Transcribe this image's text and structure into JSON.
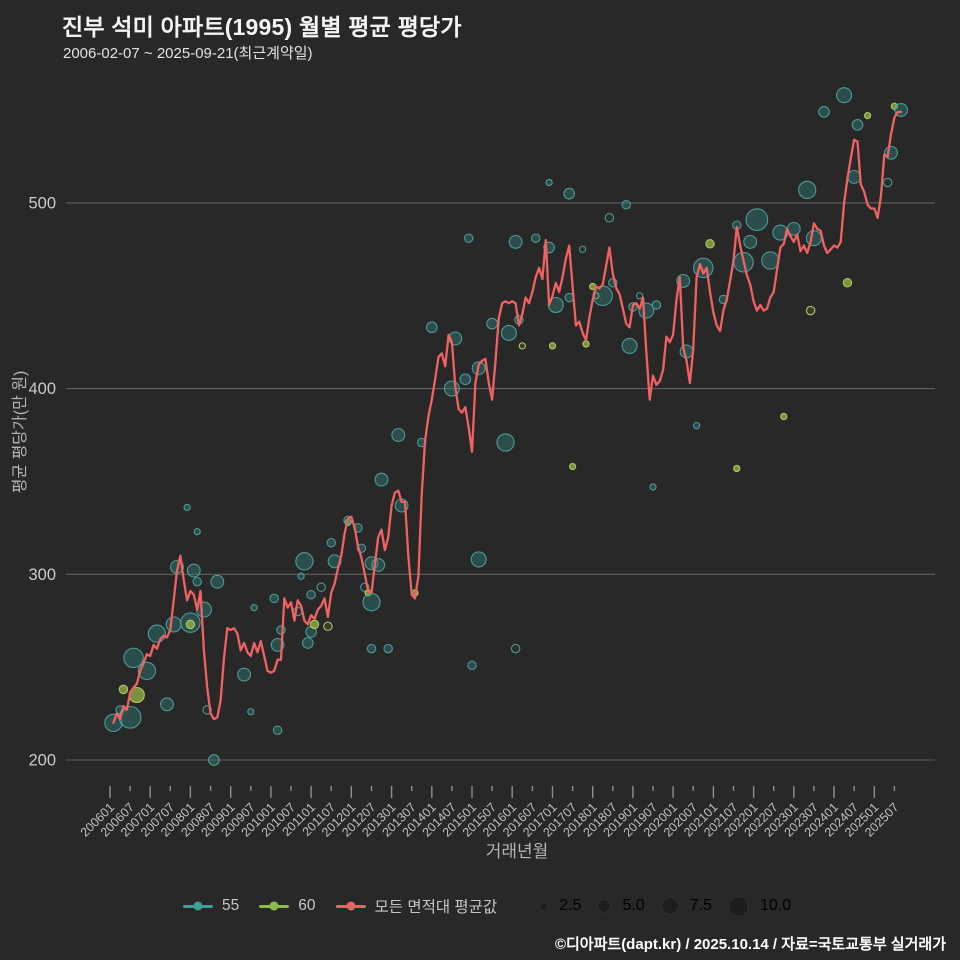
{
  "header": {
    "title": "진부 석미 아파트(1995) 월별 평균 평당가",
    "subtitle": "2006-02-07 ~ 2025-09-21(최근계약일)"
  },
  "footer": {
    "credit": "©디아파트(dapt.kr) / 2025.10.14 / 자료=국토교통부 실거래가"
  },
  "legend": {
    "series": [
      {
        "label": "55",
        "color": "#3f9e97"
      },
      {
        "label": "60",
        "color": "#8fbb4d"
      },
      {
        "label": "모든 면적대 평균값",
        "color": "#f06262"
      }
    ],
    "sizes": [
      {
        "label": "2.5"
      },
      {
        "label": "5.0"
      },
      {
        "label": "7.5"
      },
      {
        "label": "10.0"
      }
    ]
  },
  "chart_data": {
    "type": "line+scatter",
    "xlabel": "거래년월",
    "ylabel": "평균 평당가(만 원)",
    "y_ticks": [
      200,
      300,
      400,
      500
    ],
    "ylim": [
      190,
      565
    ],
    "grid": "horizontal-only",
    "x_tick_labels": [
      "200601",
      "200607",
      "200701",
      "200707",
      "200801",
      "200807",
      "200901",
      "200907",
      "201001",
      "201007",
      "201101",
      "201107",
      "201201",
      "201207",
      "201301",
      "201307",
      "201401",
      "201407",
      "201501",
      "201507",
      "201601",
      "201607",
      "201701",
      "201707",
      "201801",
      "201807",
      "201901",
      "201907",
      "202001",
      "202007",
      "202101",
      "202107",
      "202201",
      "202207",
      "202301",
      "202307",
      "202401",
      "202407",
      "202501",
      "202507"
    ],
    "line_series": {
      "name": "모든 면적대 평균값",
      "color": "#f06262",
      "start": "200602",
      "monthly_values": [
        220,
        225,
        222,
        229,
        227,
        236,
        239,
        241,
        248,
        252,
        257,
        256,
        262,
        260,
        265,
        267,
        266,
        270,
        286,
        302,
        310,
        297,
        286,
        291,
        289,
        281,
        291,
        259,
        239,
        225,
        222,
        223,
        232,
        255,
        271,
        270,
        271,
        268,
        259,
        263,
        258,
        256,
        263,
        258,
        264,
        256,
        248,
        247,
        248,
        254,
        254,
        287,
        282,
        285,
        275,
        286,
        283,
        275,
        273,
        278,
        276,
        281,
        283,
        287,
        277,
        290,
        295,
        303,
        310,
        322,
        330,
        331,
        325,
        315,
        309,
        300,
        291,
        290,
        305,
        320,
        324,
        313,
        320,
        337,
        344,
        345,
        339,
        339,
        310,
        289,
        287,
        299,
        343,
        372,
        385,
        394,
        405,
        417,
        419,
        412,
        429,
        425,
        401,
        389,
        387,
        390,
        379,
        366,
        403,
        413,
        415,
        416,
        403,
        394,
        415,
        438,
        446,
        447,
        446,
        447,
        446,
        434,
        440,
        449,
        446,
        452,
        460,
        465,
        459,
        480,
        445,
        450,
        457,
        452,
        460,
        470,
        477,
        455,
        434,
        436,
        430,
        426,
        438,
        448,
        455,
        454,
        456,
        466,
        476,
        462,
        454,
        451,
        443,
        435,
        433,
        445,
        446,
        443,
        449,
        420,
        394,
        407,
        402,
        404,
        410,
        428,
        425,
        429,
        448,
        460,
        422,
        415,
        403,
        421,
        460,
        467,
        462,
        465,
        452,
        441,
        434,
        431,
        442,
        448,
        458,
        469,
        487,
        477,
        469,
        461,
        456,
        447,
        442,
        445,
        442,
        443,
        449,
        452,
        464,
        476,
        478,
        486,
        482,
        479,
        483,
        474,
        477,
        473,
        479,
        489,
        486,
        485,
        477,
        473,
        475,
        477,
        476,
        479,
        500,
        513,
        524,
        534,
        533,
        510,
        506,
        499,
        497,
        497,
        492,
        504,
        526,
        525,
        537,
        546,
        549,
        549
      ]
    },
    "bubble_series": {
      "legend_sizes": [
        2.5,
        5.0,
        7.5,
        10.0
      ],
      "styles": {
        "55": {
          "fill": "rgba(47,122,120,0.45)",
          "ring_fill": "rgba(47,122,120,0.10)",
          "stroke": "rgba(84,172,166,0.85)"
        },
        "60": {
          "fill": "rgba(150,182,72,0.75)",
          "ring_fill": "rgba(150,182,72,0.15)",
          "stroke": "rgba(178,208,95,0.95)"
        }
      },
      "points": [
        [
          "200602",
          220,
          6,
          "55",
          0
        ],
        [
          "200604",
          227,
          2,
          "55",
          0
        ],
        [
          "200605",
          238,
          2,
          "60",
          0
        ],
        [
          "200607",
          223,
          8,
          "55",
          0
        ],
        [
          "200608",
          255,
          7,
          "55",
          0
        ],
        [
          "200609",
          235,
          5,
          "60",
          0
        ],
        [
          "200612",
          248,
          6,
          "55",
          0
        ],
        [
          "200703",
          268,
          6,
          "55",
          0
        ],
        [
          "200706",
          230,
          4,
          "55",
          0
        ],
        [
          "200708",
          273,
          5,
          "55",
          0
        ],
        [
          "200709",
          304,
          4,
          "55",
          0
        ],
        [
          "200712",
          336,
          1,
          "55",
          0
        ],
        [
          "200801",
          274,
          7,
          "55",
          0
        ],
        [
          "200801",
          273,
          2,
          "60",
          0
        ],
        [
          "200802",
          302,
          4,
          "55",
          0
        ],
        [
          "200803",
          323,
          1,
          "55",
          0
        ],
        [
          "200803",
          296,
          2,
          "55",
          0
        ],
        [
          "200805",
          281,
          5,
          "55",
          0
        ],
        [
          "200806",
          227,
          2,
          "55",
          1
        ],
        [
          "200808",
          200,
          3,
          "55",
          0
        ],
        [
          "200809",
          296,
          4,
          "55",
          0
        ],
        [
          "200905",
          246,
          4,
          "55",
          0
        ],
        [
          "200907",
          226,
          1,
          "55",
          0
        ],
        [
          "200908",
          282,
          1,
          "55",
          0
        ],
        [
          "201002",
          287,
          2,
          "55",
          0
        ],
        [
          "201003",
          216,
          2,
          "55",
          0
        ],
        [
          "201003",
          262,
          4,
          "55",
          0
        ],
        [
          "201004",
          270,
          2,
          "55",
          0
        ],
        [
          "201009",
          280,
          2,
          "55",
          1
        ],
        [
          "201010",
          299,
          1,
          "55",
          0
        ],
        [
          "201011",
          307,
          6,
          "55",
          0
        ],
        [
          "201012",
          263,
          3,
          "55",
          0
        ],
        [
          "201101",
          289,
          2,
          "55",
          0
        ],
        [
          "201101",
          269,
          3,
          "55",
          0
        ],
        [
          "201102",
          273,
          2,
          "60",
          0
        ],
        [
          "201104",
          293,
          2,
          "55",
          1
        ],
        [
          "201106",
          272,
          2,
          "60",
          1
        ],
        [
          "201107",
          317,
          2,
          "55",
          0
        ],
        [
          "201108",
          307,
          4,
          "55",
          0
        ],
        [
          "201112",
          328,
          1,
          "60",
          0
        ],
        [
          "201112",
          329,
          2,
          "55",
          0
        ],
        [
          "201203",
          325,
          2,
          "55",
          0
        ],
        [
          "201204",
          314,
          2,
          "55",
          0
        ],
        [
          "201205",
          293,
          2,
          "55",
          1
        ],
        [
          "201206",
          290,
          1,
          "60",
          0
        ],
        [
          "201207",
          306,
          4,
          "55",
          0
        ],
        [
          "201207",
          285,
          6,
          "55",
          0
        ],
        [
          "201207",
          260,
          2,
          "55",
          0
        ],
        [
          "201209",
          305,
          4,
          "55",
          0
        ],
        [
          "201210",
          351,
          4,
          "55",
          0
        ],
        [
          "201212",
          260,
          2,
          "55",
          0
        ],
        [
          "201303",
          375,
          4,
          "55",
          0
        ],
        [
          "201304",
          337,
          4,
          "55",
          0
        ],
        [
          "201308",
          290,
          1,
          "60",
          0
        ],
        [
          "201310",
          371,
          2,
          "55",
          0
        ],
        [
          "201401",
          433,
          3,
          "55",
          0
        ],
        [
          "201407",
          400,
          5,
          "55",
          0
        ],
        [
          "201408",
          427,
          4,
          "55",
          0
        ],
        [
          "201411",
          405,
          3,
          "55",
          0
        ],
        [
          "201412",
          481,
          2,
          "55",
          0
        ],
        [
          "201501",
          251,
          2,
          "55",
          0
        ],
        [
          "201503",
          308,
          5,
          "55",
          0
        ],
        [
          "201503",
          411,
          4,
          "55",
          0
        ],
        [
          "201507",
          435,
          3,
          "55",
          0
        ],
        [
          "201511",
          371,
          6,
          "55",
          0
        ],
        [
          "201512",
          430,
          5,
          "55",
          0
        ],
        [
          "201602",
          260,
          2,
          "55",
          1
        ],
        [
          "201602",
          479,
          4,
          "55",
          0
        ],
        [
          "201603",
          437,
          2,
          "55",
          0
        ],
        [
          "201604",
          423,
          1,
          "60",
          1
        ],
        [
          "201608",
          481,
          2,
          "55",
          0
        ],
        [
          "201612",
          476,
          3,
          "55",
          0
        ],
        [
          "201612",
          511,
          1,
          "55",
          0
        ],
        [
          "201701",
          423,
          1,
          "60",
          0
        ],
        [
          "201702",
          445,
          5,
          "55",
          0
        ],
        [
          "201706",
          449,
          2,
          "55",
          0
        ],
        [
          "201706",
          505,
          3,
          "55",
          0
        ],
        [
          "201707",
          358,
          1,
          "60",
          0
        ],
        [
          "201710",
          475,
          1,
          "55",
          1
        ],
        [
          "201711",
          424,
          1,
          "60",
          0
        ],
        [
          "201801",
          455,
          1,
          "60",
          0
        ],
        [
          "201802",
          450,
          1,
          "60",
          1
        ],
        [
          "201804",
          450,
          7,
          "55",
          0
        ],
        [
          "201806",
          492,
          2,
          "55",
          1
        ],
        [
          "201807",
          457,
          2,
          "55",
          0
        ],
        [
          "201811",
          499,
          2,
          "55",
          0
        ],
        [
          "201812",
          423,
          5,
          "55",
          0
        ],
        [
          "201901",
          444,
          2,
          "55",
          0
        ],
        [
          "201903",
          450,
          1,
          "55",
          1
        ],
        [
          "201905",
          442,
          5,
          "55",
          0
        ],
        [
          "201907",
          347,
          1,
          "55",
          0
        ],
        [
          "201908",
          445,
          2,
          "55",
          0
        ],
        [
          "202004",
          458,
          4,
          "55",
          0
        ],
        [
          "202005",
          420,
          4,
          "55",
          0
        ],
        [
          "202008",
          380,
          1,
          "55",
          0
        ],
        [
          "202010",
          465,
          7,
          "55",
          0
        ],
        [
          "202012",
          478,
          2,
          "60",
          0
        ],
        [
          "202104",
          448,
          2,
          "55",
          0
        ],
        [
          "202108",
          488,
          2,
          "55",
          0
        ],
        [
          "202108",
          357,
          1,
          "60",
          0
        ],
        [
          "202110",
          468,
          7,
          "55",
          0
        ],
        [
          "202112",
          479,
          4,
          "55",
          0
        ],
        [
          "202202",
          491,
          8,
          "55",
          0
        ],
        [
          "202206",
          469,
          6,
          "55",
          0
        ],
        [
          "202209",
          484,
          5,
          "55",
          0
        ],
        [
          "202210",
          385,
          1,
          "60",
          0
        ],
        [
          "202301",
          486,
          4,
          "55",
          0
        ],
        [
          "202305",
          507,
          6,
          "55",
          0
        ],
        [
          "202306",
          442,
          2,
          "60",
          1
        ],
        [
          "202307",
          481,
          5,
          "55",
          0
        ],
        [
          "202310",
          549,
          3,
          "55",
          0
        ],
        [
          "202404",
          558,
          5,
          "55",
          0
        ],
        [
          "202405",
          457,
          2,
          "60",
          0
        ],
        [
          "202407",
          514,
          4,
          "55",
          0
        ],
        [
          "202408",
          542,
          3,
          "55",
          0
        ],
        [
          "202411",
          547,
          1,
          "60",
          0
        ],
        [
          "202505",
          511,
          2,
          "55",
          1
        ],
        [
          "202506",
          527,
          4,
          "55",
          0
        ],
        [
          "202507",
          552,
          1,
          "60",
          0
        ],
        [
          "202509",
          550,
          4,
          "55",
          0
        ]
      ]
    }
  }
}
